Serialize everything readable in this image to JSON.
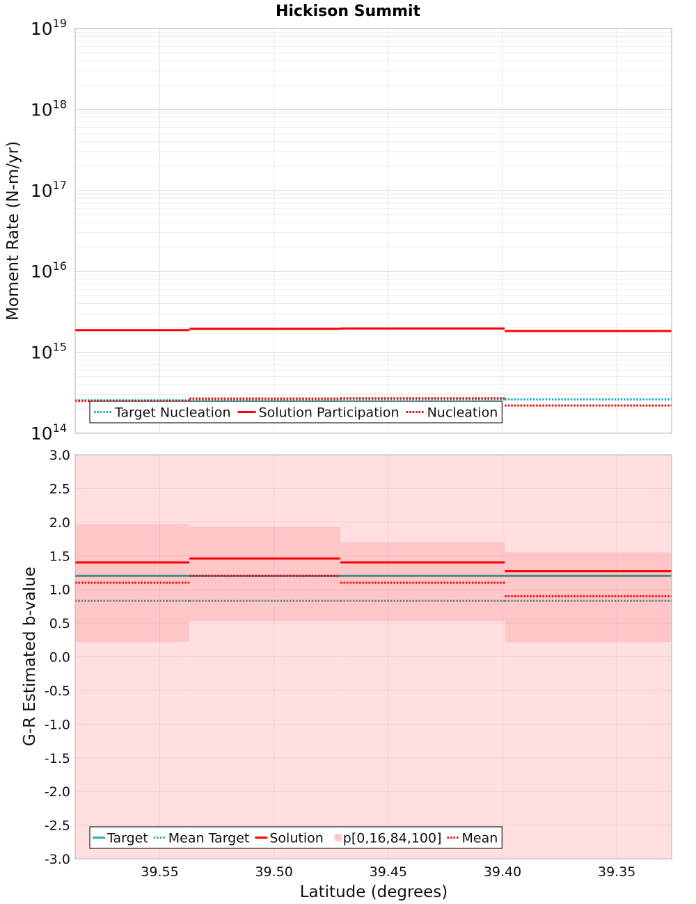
{
  "title": "Hickison Summit",
  "chart_data": [
    {
      "type": "line",
      "subtype": "step",
      "yscale": "log",
      "ylabel": "Moment Rate (N-m/yr)",
      "ylim_exp": [
        14,
        19
      ],
      "ytick_base": "10",
      "ytick_exponents": [
        "14",
        "15",
        "16",
        "17",
        "18",
        "19"
      ],
      "xlim": [
        39.587,
        39.326
      ],
      "x_bins": [
        [
          39.587,
          39.537
        ],
        [
          39.537,
          39.471
        ],
        [
          39.471,
          39.399
        ],
        [
          39.399,
          39.326
        ]
      ],
      "series": [
        {
          "name": "Target Nucleation",
          "style": "dotted",
          "color": "#17b3b3",
          "values": [
            255000000000000.0,
            260000000000000.0,
            262000000000000.0,
            262000000000000.0
          ]
        },
        {
          "name": "Solution Participation",
          "style": "solid",
          "color": "#ff0000",
          "values": [
            1880000000000000.0,
            1950000000000000.0,
            1970000000000000.0,
            1830000000000000.0
          ]
        },
        {
          "name": "Nucleation",
          "style": "dotted",
          "color": "#ff0000",
          "values": [
            250000000000000.0,
            268000000000000.0,
            270000000000000.0,
            220000000000000.0
          ]
        }
      ],
      "legend": {
        "position": "bottom-left",
        "entries": [
          "Target Nucleation",
          "Solution Participation",
          "Nucleation"
        ]
      }
    },
    {
      "type": "line",
      "subtype": "step",
      "ylabel": "G-R Estimated b-value",
      "xlabel": "Latitude (degrees)",
      "ylim": [
        -3.0,
        3.0
      ],
      "yticks": [
        "-3.0",
        "-2.5",
        "-2.0",
        "-1.5",
        "-1.0",
        "-0.5",
        "0.0",
        "0.5",
        "1.0",
        "1.5",
        "2.0",
        "2.5",
        "3.0"
      ],
      "xlim": [
        39.587,
        39.326
      ],
      "xticks": [
        "39.55",
        "39.50",
        "39.45",
        "39.40",
        "39.35"
      ],
      "x_bins": [
        [
          39.587,
          39.537
        ],
        [
          39.537,
          39.471
        ],
        [
          39.471,
          39.399
        ],
        [
          39.399,
          39.326
        ]
      ],
      "band_outer": {
        "name": "p[0,16,84,100]",
        "lower": [
          -3.0,
          -3.0,
          -3.0,
          -3.0
        ],
        "upper": [
          3.0,
          3.0,
          3.0,
          3.0
        ]
      },
      "band_inner": {
        "lower": [
          0.22,
          0.53,
          0.53,
          0.22
        ],
        "upper": [
          1.97,
          1.93,
          1.7,
          1.55
        ]
      },
      "series": [
        {
          "name": "Target",
          "style": "solid",
          "color": "#3d8f8f",
          "values": [
            1.2,
            1.2,
            1.2,
            1.2
          ]
        },
        {
          "name": "Mean Target",
          "style": "dotted",
          "color": "#5c8a8a",
          "values": [
            0.83,
            0.83,
            0.83,
            0.83
          ]
        },
        {
          "name": "Solution",
          "style": "solid",
          "color": "#ff0000",
          "values": [
            1.4,
            1.46,
            1.4,
            1.27
          ]
        },
        {
          "name": "Mean",
          "style": "dotted",
          "color": "#ff0000",
          "values": [
            1.1,
            1.2,
            1.1,
            0.9
          ]
        }
      ],
      "legend": {
        "position": "bottom-left",
        "entries": [
          "Target",
          "Mean Target",
          "Solution",
          "p[0,16,84,100]",
          "Mean"
        ]
      }
    }
  ],
  "colors": {
    "band_outer": "#ffdfe0",
    "band_inner": "#ffc6c8",
    "legend_target_line": "#17b3b3",
    "grid": "#dcdcdc"
  }
}
